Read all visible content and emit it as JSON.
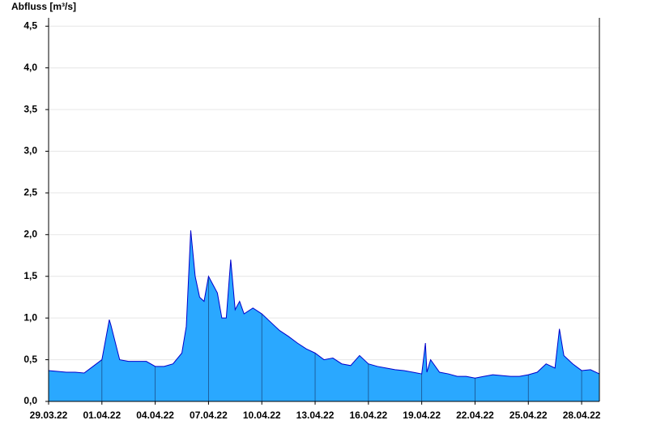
{
  "chart_data": {
    "type": "area",
    "title": "Abfluss [m³/s]",
    "x": [
      "2022-03-29T00:00",
      "2022-03-29T12:00",
      "2022-03-30T00:00",
      "2022-03-30T12:00",
      "2022-03-31T00:00",
      "2022-03-31T12:00",
      "2022-04-01T00:00",
      "2022-04-01T10:00",
      "2022-04-01T12:00",
      "2022-04-02T00:00",
      "2022-04-02T12:00",
      "2022-04-03T00:00",
      "2022-04-03T12:00",
      "2022-04-04T00:00",
      "2022-04-04T12:00",
      "2022-04-05T00:00",
      "2022-04-05T12:00",
      "2022-04-05T18:00",
      "2022-04-06T00:00",
      "2022-04-06T06:00",
      "2022-04-06T12:00",
      "2022-04-06T18:00",
      "2022-04-07T00:00",
      "2022-04-07T06:00",
      "2022-04-07T12:00",
      "2022-04-07T18:00",
      "2022-04-08T00:00",
      "2022-04-08T06:00",
      "2022-04-08T12:00",
      "2022-04-08T18:00",
      "2022-04-09T00:00",
      "2022-04-09T12:00",
      "2022-04-10T00:00",
      "2022-04-10T12:00",
      "2022-04-11T00:00",
      "2022-04-11T12:00",
      "2022-04-12T00:00",
      "2022-04-12T12:00",
      "2022-04-13T00:00",
      "2022-04-13T12:00",
      "2022-04-14T00:00",
      "2022-04-14T12:00",
      "2022-04-15T00:00",
      "2022-04-15T12:00",
      "2022-04-16T00:00",
      "2022-04-16T12:00",
      "2022-04-17T00:00",
      "2022-04-17T12:00",
      "2022-04-18T00:00",
      "2022-04-18T12:00",
      "2022-04-19T00:00",
      "2022-04-19T05:00",
      "2022-04-19T07:00",
      "2022-04-19T12:00",
      "2022-04-20T00:00",
      "2022-04-20T12:00",
      "2022-04-21T00:00",
      "2022-04-21T12:00",
      "2022-04-22T00:00",
      "2022-04-22T12:00",
      "2022-04-23T00:00",
      "2022-04-23T12:00",
      "2022-04-24T00:00",
      "2022-04-24T12:00",
      "2022-04-25T00:00",
      "2022-04-25T12:00",
      "2022-04-26T00:00",
      "2022-04-26T12:00",
      "2022-04-26T18:00",
      "2022-04-27T00:00",
      "2022-04-27T12:00",
      "2022-04-28T00:00",
      "2022-04-28T12:00",
      "2022-04-29T00:00"
    ],
    "values": [
      0.37,
      0.36,
      0.35,
      0.35,
      0.34,
      0.42,
      0.5,
      0.98,
      0.92,
      0.5,
      0.48,
      0.48,
      0.48,
      0.42,
      0.42,
      0.45,
      0.58,
      0.9,
      2.05,
      1.5,
      1.25,
      1.2,
      1.5,
      1.4,
      1.3,
      1.0,
      1.0,
      1.7,
      1.1,
      1.2,
      1.05,
      1.12,
      1.05,
      0.95,
      0.85,
      0.78,
      0.7,
      0.63,
      0.58,
      0.5,
      0.52,
      0.45,
      0.43,
      0.55,
      0.45,
      0.42,
      0.4,
      0.38,
      0.37,
      0.35,
      0.33,
      0.7,
      0.35,
      0.5,
      0.35,
      0.33,
      0.3,
      0.3,
      0.28,
      0.3,
      0.32,
      0.31,
      0.3,
      0.3,
      0.32,
      0.35,
      0.45,
      0.4,
      0.87,
      0.55,
      0.45,
      0.37,
      0.38,
      0.33
    ],
    "color": "#2aa8ff",
    "line_color": "#0000cc",
    "xlim": [
      "2022-03-29T00:00",
      "2022-04-29T00:00"
    ],
    "xticks": [
      {
        "value": "2022-03-29T00:00",
        "label": "29.03.22"
      },
      {
        "value": "2022-04-01T00:00",
        "label": "01.04.22"
      },
      {
        "value": "2022-04-04T00:00",
        "label": "04.04.22"
      },
      {
        "value": "2022-04-07T00:00",
        "label": "07.04.22"
      },
      {
        "value": "2022-04-10T00:00",
        "label": "10.04.22"
      },
      {
        "value": "2022-04-13T00:00",
        "label": "13.04.22"
      },
      {
        "value": "2022-04-16T00:00",
        "label": "16.04.22"
      },
      {
        "value": "2022-04-19T00:00",
        "label": "19.04.22"
      },
      {
        "value": "2022-04-22T00:00",
        "label": "22.04.22"
      },
      {
        "value": "2022-04-25T00:00",
        "label": "25.04.22"
      },
      {
        "value": "2022-04-28T00:00",
        "label": "28.04.22"
      }
    ],
    "ylim": [
      0,
      4.6
    ],
    "yticks": [
      {
        "value": 0,
        "label": "0,0"
      },
      {
        "value": 0.5,
        "label": "0,5"
      },
      {
        "value": 1,
        "label": "1,0"
      },
      {
        "value": 1.5,
        "label": "1,5"
      },
      {
        "value": 2,
        "label": "2,0"
      },
      {
        "value": 2.5,
        "label": "2,5"
      },
      {
        "value": 3,
        "label": "3,0"
      },
      {
        "value": 3.5,
        "label": "3,5"
      },
      {
        "value": 4,
        "label": "4,0"
      },
      {
        "value": 4.5,
        "label": "4,5"
      }
    ],
    "grid": true
  }
}
